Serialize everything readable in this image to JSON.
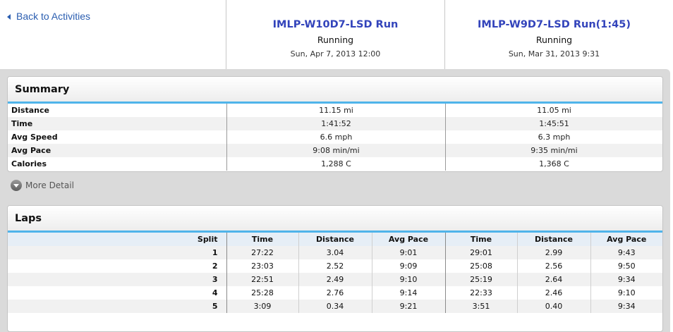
{
  "nav": {
    "back_label": "Back to Activities"
  },
  "activities": [
    {
      "title": "IMLP-W10D7-LSD Run",
      "type": "Running",
      "date": "Sun, Apr 7, 2013 12:00"
    },
    {
      "title": "IMLP-W9D7-LSD Run(1:45)",
      "type": "Running",
      "date": "Sun, Mar 31, 2013 9:31"
    }
  ],
  "summary": {
    "title": "Summary",
    "rows": [
      {
        "label": "Distance",
        "a": "11.15 mi",
        "b": "11.05 mi"
      },
      {
        "label": "Time",
        "a": "1:41:52",
        "b": "1:45:51"
      },
      {
        "label": "Avg Speed",
        "a": "6.6 mph",
        "b": "6.3 mph"
      },
      {
        "label": "Avg Pace",
        "a": "9:08 min/mi",
        "b": "9:35 min/mi"
      },
      {
        "label": "Calories",
        "a": "1,288 C",
        "b": "1,368 C"
      }
    ]
  },
  "more_detail_label": "More Detail",
  "laps": {
    "title": "Laps",
    "headers": {
      "split": "Split",
      "time": "Time",
      "distance": "Distance",
      "pace": "Avg Pace"
    },
    "rows": [
      {
        "split": "1",
        "a_time": "27:22",
        "a_dist": "3.04",
        "a_pace": "9:01",
        "b_time": "29:01",
        "b_dist": "2.99",
        "b_pace": "9:43"
      },
      {
        "split": "2",
        "a_time": "23:03",
        "a_dist": "2.52",
        "a_pace": "9:09",
        "b_time": "25:08",
        "b_dist": "2.56",
        "b_pace": "9:50"
      },
      {
        "split": "3",
        "a_time": "22:51",
        "a_dist": "2.49",
        "a_pace": "9:10",
        "b_time": "25:19",
        "b_dist": "2.64",
        "b_pace": "9:34"
      },
      {
        "split": "4",
        "a_time": "25:28",
        "a_dist": "2.76",
        "a_pace": "9:14",
        "b_time": "22:33",
        "b_dist": "2.46",
        "b_pace": "9:10"
      },
      {
        "split": "5",
        "a_time": "3:09",
        "a_dist": "0.34",
        "a_pace": "9:21",
        "b_time": "3:51",
        "b_dist": "0.40",
        "b_pace": "9:34"
      }
    ]
  }
}
